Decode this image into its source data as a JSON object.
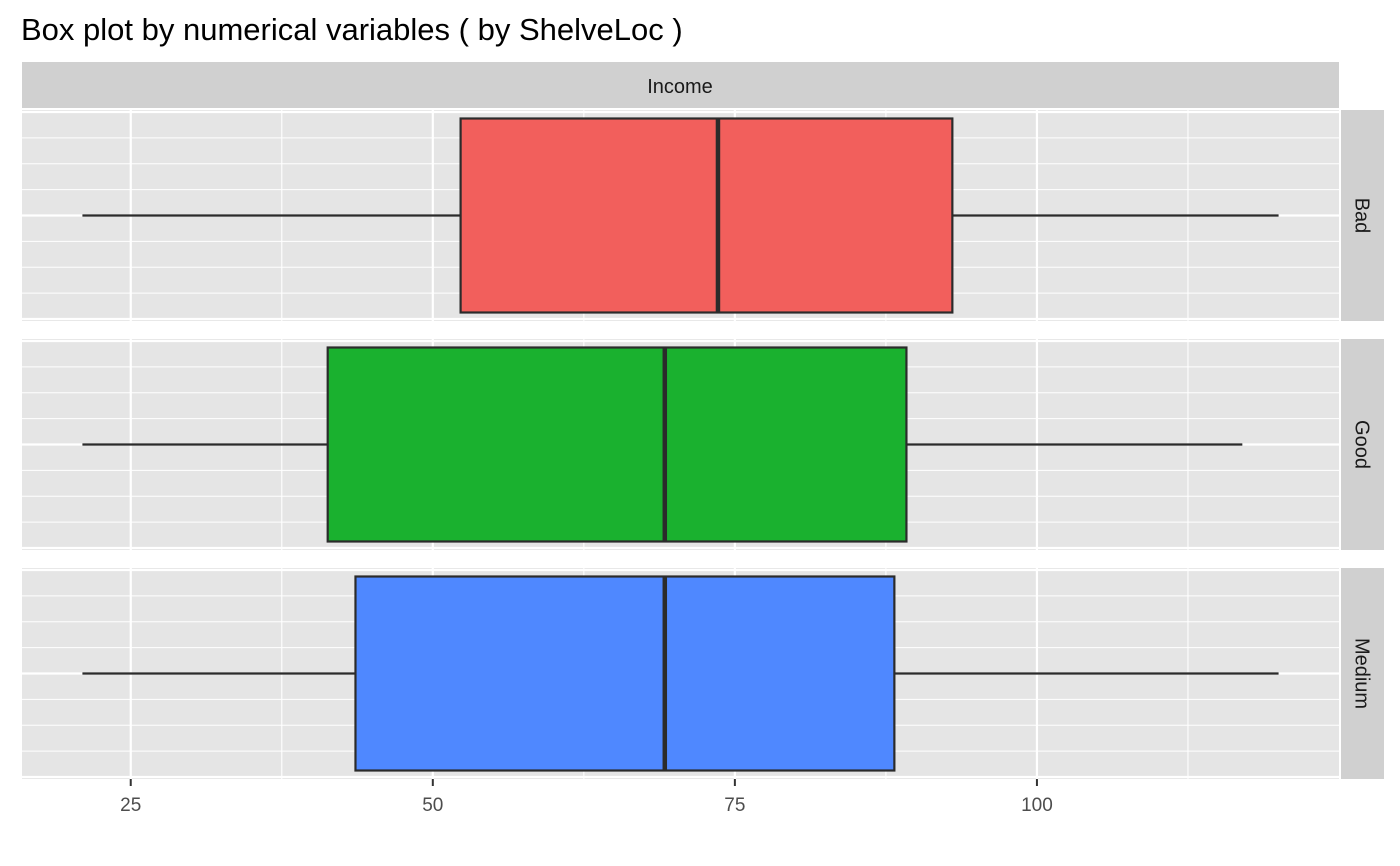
{
  "chart_data": {
    "type": "boxplot",
    "title": "Box plot by numerical variables ( by ShelveLoc )",
    "facet_column": "Income",
    "orientation": "horizontal",
    "xlim": [
      16,
      125
    ],
    "x_ticks": [
      25,
      50,
      75,
      100
    ],
    "grid": true,
    "legend": "none",
    "groups": [
      {
        "name": "Bad",
        "color": "#F25F5C",
        "min": 21,
        "q1": 52.3,
        "median": 73.6,
        "q3": 93,
        "max": 120
      },
      {
        "name": "Good",
        "color": "#1AB12F",
        "min": 21,
        "q1": 41.3,
        "median": 69.2,
        "q3": 89.2,
        "max": 117
      },
      {
        "name": "Medium",
        "color": "#4F88FF",
        "min": 21,
        "q1": 43.6,
        "median": 69.2,
        "q3": 88.2,
        "max": 120
      }
    ]
  },
  "colors": {
    "panel_background": "#E5E5E5",
    "strip_background": "#D0D0D0",
    "grid_line": "#FFFFFF",
    "box_outline": "#2B2B2B"
  }
}
